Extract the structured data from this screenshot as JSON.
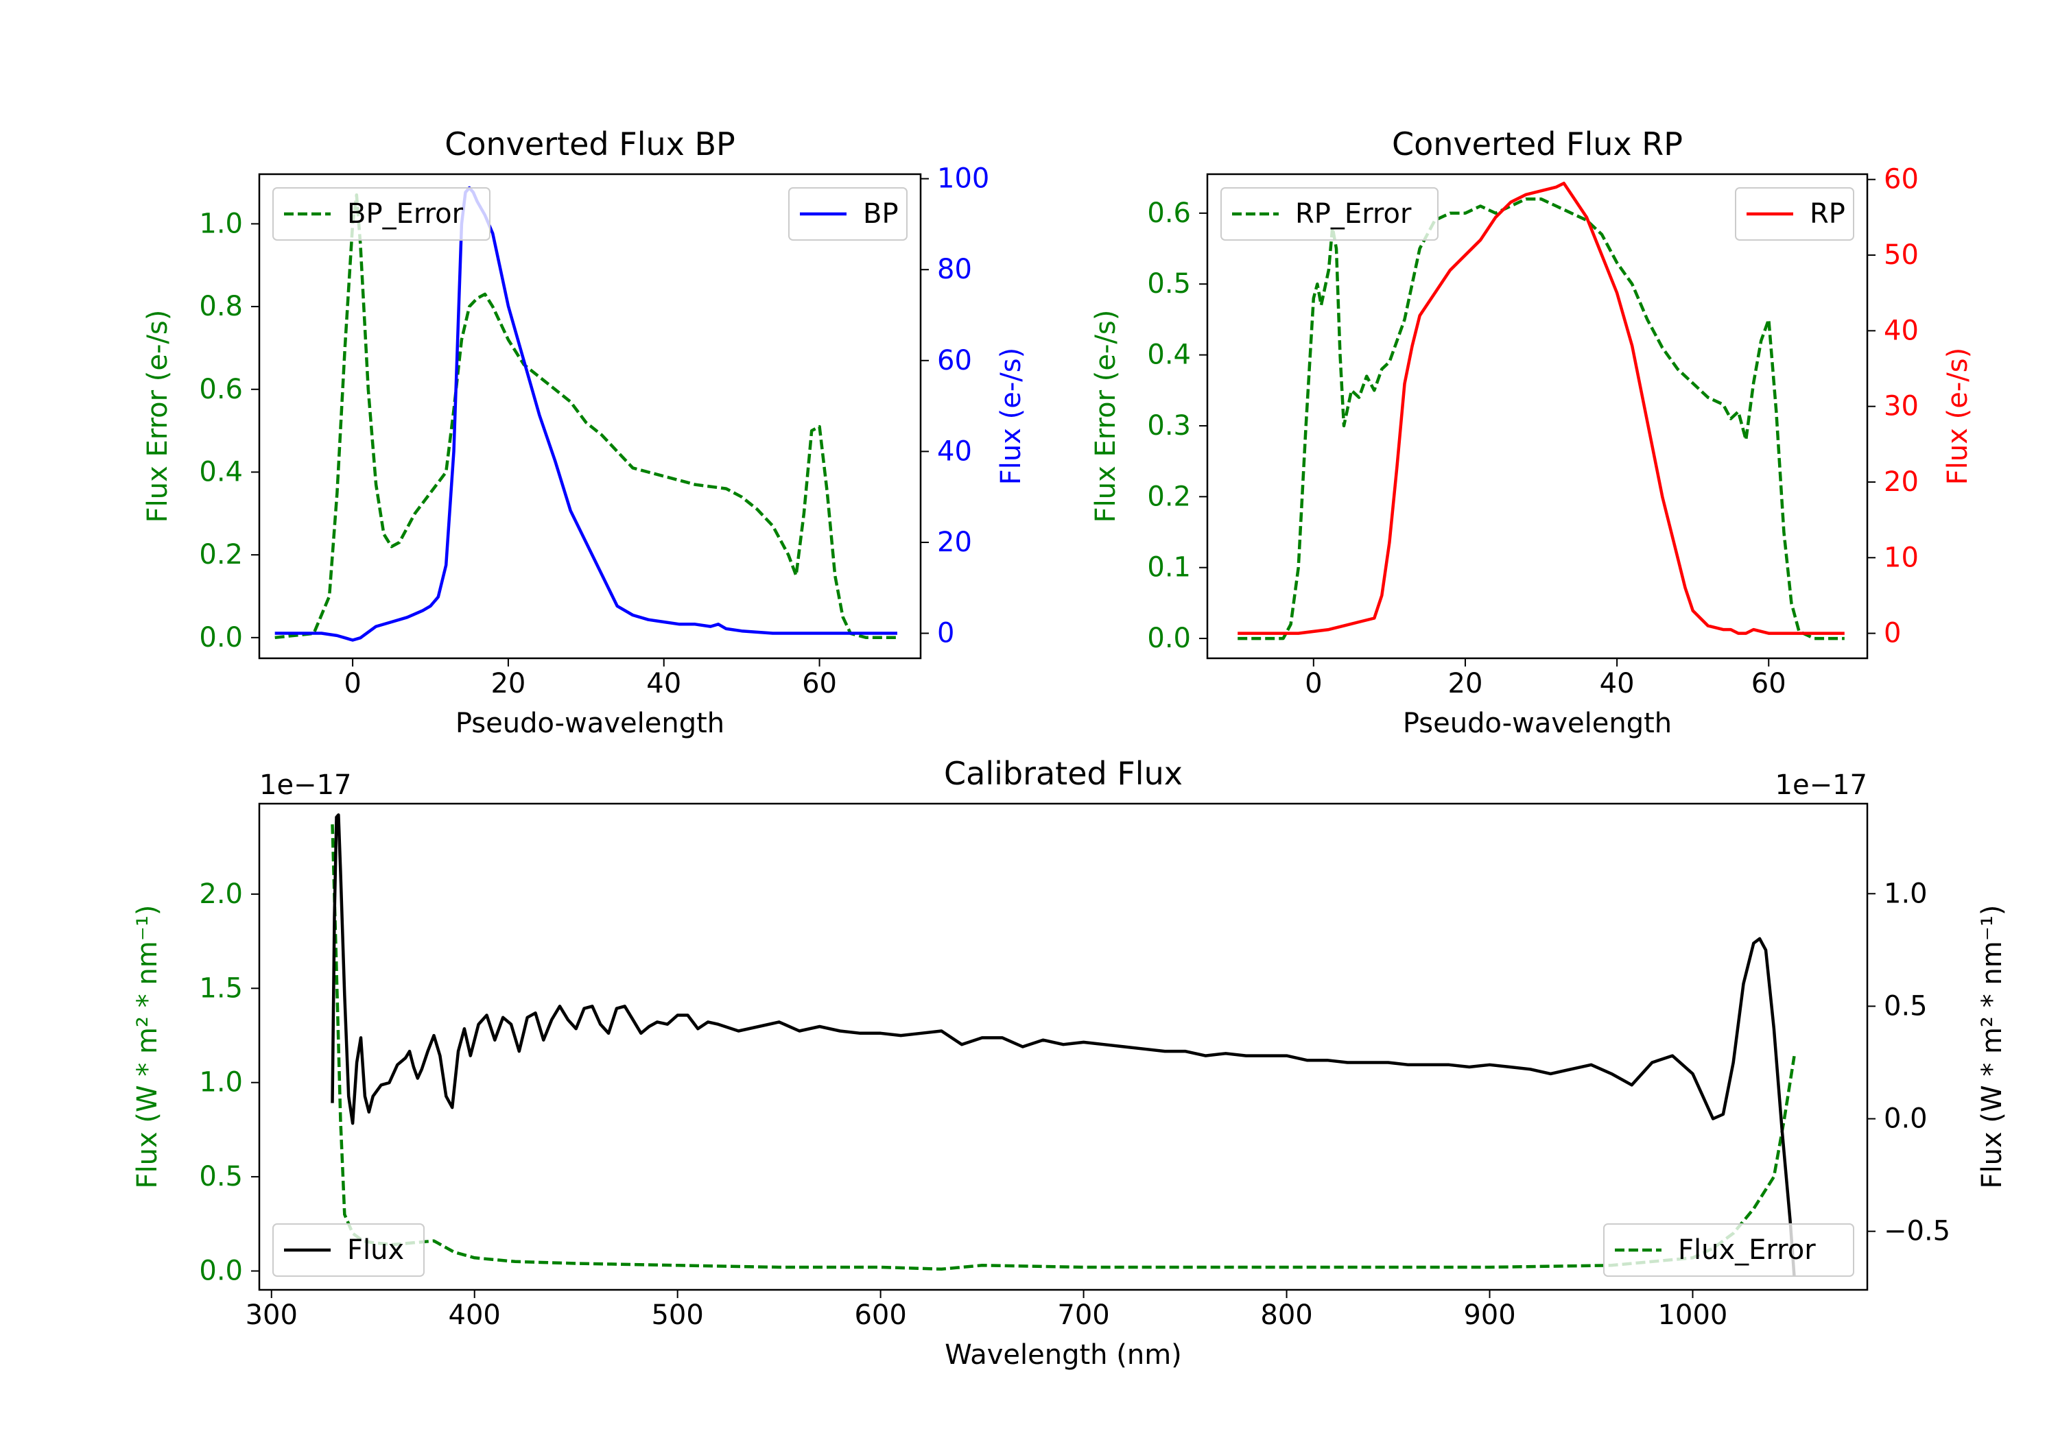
{
  "chart_data": [
    {
      "id": "bp",
      "type": "line",
      "title": "Converted Flux BP",
      "xlabel": "Pseudo-wavelength",
      "ylabel_left": "Flux Error (e-/s)",
      "ylabel_right": "Flux (e-/s)",
      "xlim": [
        -12,
        73
      ],
      "ylim_left": [
        -0.05,
        1.12
      ],
      "ylim_right": [
        -5.5,
        101
      ],
      "xticks": [
        {
          "v": 0,
          "label": "0"
        },
        {
          "v": 20,
          "label": "20"
        },
        {
          "v": 40,
          "label": "40"
        },
        {
          "v": 60,
          "label": "60"
        }
      ],
      "yticks_left": [
        {
          "v": 0.0,
          "label": "0.0"
        },
        {
          "v": 0.2,
          "label": "0.2"
        },
        {
          "v": 0.4,
          "label": "0.4"
        },
        {
          "v": 0.6,
          "label": "0.6"
        },
        {
          "v": 0.8,
          "label": "0.8"
        },
        {
          "v": 1.0,
          "label": "1.0"
        }
      ],
      "yticks_right": [
        {
          "v": 0,
          "label": "0"
        },
        {
          "v": 20,
          "label": "20"
        },
        {
          "v": 40,
          "label": "40"
        },
        {
          "v": 60,
          "label": "60"
        },
        {
          "v": 80,
          "label": "80"
        },
        {
          "v": 100,
          "label": "100"
        }
      ],
      "left_color": "#008000",
      "right_color": "#0000ff",
      "legend_left": {
        "label": "BP_Error",
        "position": "upper-left"
      },
      "legend_right": {
        "label": "BP",
        "position": "upper-right"
      },
      "series": [
        {
          "name": "BP_Error",
          "axis": "left",
          "color": "#008000",
          "dash": true,
          "x": [
            -10,
            -5,
            -3,
            -2,
            -1,
            0,
            0.5,
            1,
            2,
            3,
            4,
            5,
            6,
            8,
            10,
            12,
            13,
            14,
            15,
            16,
            17,
            18,
            20,
            22,
            24,
            26,
            28,
            30,
            32,
            34,
            36,
            38,
            40,
            42,
            44,
            46,
            48,
            50,
            52,
            54,
            56,
            57,
            58,
            59,
            60,
            61,
            62,
            63,
            64,
            66,
            70
          ],
          "y": [
            0,
            0.01,
            0.1,
            0.35,
            0.7,
            1.0,
            1.07,
            0.95,
            0.6,
            0.37,
            0.25,
            0.22,
            0.23,
            0.3,
            0.35,
            0.4,
            0.55,
            0.72,
            0.8,
            0.82,
            0.83,
            0.8,
            0.72,
            0.66,
            0.63,
            0.6,
            0.57,
            0.52,
            0.49,
            0.45,
            0.41,
            0.4,
            0.39,
            0.38,
            0.37,
            0.365,
            0.36,
            0.34,
            0.31,
            0.27,
            0.2,
            0.15,
            0.3,
            0.5,
            0.51,
            0.35,
            0.15,
            0.05,
            0.01,
            0,
            0
          ]
        },
        {
          "name": "BP",
          "axis": "right",
          "color": "#0000ff",
          "dash": false,
          "x": [
            -10,
            -4,
            -2,
            -1,
            0,
            1,
            3,
            5,
            7,
            9,
            10,
            11,
            12,
            13,
            13.5,
            14,
            14.5,
            15,
            15.5,
            16,
            17,
            18,
            19,
            20,
            22,
            24,
            26,
            28,
            30,
            32,
            34,
            36,
            38,
            40,
            42,
            44,
            46,
            47,
            48,
            50,
            54,
            58,
            62,
            66,
            70
          ],
          "y": [
            0,
            0,
            -0.5,
            -1,
            -1.5,
            -1,
            1.5,
            2.5,
            3.5,
            5,
            6,
            8,
            15,
            40,
            65,
            90,
            97,
            98,
            97,
            95,
            92,
            88,
            80,
            72,
            60,
            48,
            38,
            27,
            20,
            13,
            6,
            4,
            3,
            2.5,
            2,
            2,
            1.5,
            2,
            1,
            0.5,
            0,
            0,
            0,
            0,
            0
          ]
        }
      ]
    },
    {
      "id": "rp",
      "type": "line",
      "title": "Converted Flux RP",
      "xlabel": "Pseudo-wavelength",
      "ylabel_left": "Flux Error (e-/s)",
      "ylabel_right": "Flux (e-/s)",
      "xlim": [
        -14,
        73
      ],
      "ylim_left": [
        -0.028,
        0.655
      ],
      "ylim_right": [
        -3.3,
        60.7
      ],
      "xticks": [
        {
          "v": 0,
          "label": "0"
        },
        {
          "v": 20,
          "label": "20"
        },
        {
          "v": 40,
          "label": "40"
        },
        {
          "v": 60,
          "label": "60"
        }
      ],
      "yticks_left": [
        {
          "v": 0.0,
          "label": "0.0"
        },
        {
          "v": 0.1,
          "label": "0.1"
        },
        {
          "v": 0.2,
          "label": "0.2"
        },
        {
          "v": 0.3,
          "label": "0.3"
        },
        {
          "v": 0.4,
          "label": "0.4"
        },
        {
          "v": 0.5,
          "label": "0.5"
        },
        {
          "v": 0.6,
          "label": "0.6"
        }
      ],
      "yticks_right": [
        {
          "v": 0,
          "label": "0"
        },
        {
          "v": 10,
          "label": "10"
        },
        {
          "v": 20,
          "label": "20"
        },
        {
          "v": 30,
          "label": "30"
        },
        {
          "v": 40,
          "label": "40"
        },
        {
          "v": 50,
          "label": "50"
        },
        {
          "v": 60,
          "label": "60"
        }
      ],
      "left_color": "#008000",
      "right_color": "#ff0000",
      "legend_left": {
        "label": "RP_Error",
        "position": "upper-left"
      },
      "legend_right": {
        "label": "RP",
        "position": "upper-right"
      },
      "series": [
        {
          "name": "RP_Error",
          "axis": "left",
          "color": "#008000",
          "dash": true,
          "x": [
            -10,
            -4,
            -3,
            -2,
            -1,
            0,
            0.5,
            1,
            2,
            2.5,
            3,
            3.5,
            4,
            5,
            6,
            7,
            8,
            9,
            10,
            12,
            14,
            16,
            18,
            20,
            22,
            24,
            26,
            28,
            30,
            32,
            34,
            36,
            38,
            40,
            42,
            44,
            46,
            48,
            50,
            52,
            54,
            55,
            56,
            57,
            58,
            59,
            60,
            61,
            62,
            63,
            64,
            66,
            70
          ],
          "y": [
            0,
            0,
            0.02,
            0.1,
            0.3,
            0.48,
            0.5,
            0.47,
            0.52,
            0.58,
            0.55,
            0.4,
            0.3,
            0.35,
            0.34,
            0.37,
            0.35,
            0.38,
            0.39,
            0.45,
            0.55,
            0.59,
            0.6,
            0.6,
            0.61,
            0.6,
            0.61,
            0.62,
            0.62,
            0.61,
            0.6,
            0.59,
            0.57,
            0.53,
            0.5,
            0.45,
            0.41,
            0.38,
            0.36,
            0.34,
            0.33,
            0.31,
            0.32,
            0.28,
            0.36,
            0.42,
            0.45,
            0.32,
            0.15,
            0.05,
            0.01,
            0,
            0
          ]
        },
        {
          "name": "RP",
          "axis": "right",
          "color": "#ff0000",
          "dash": false,
          "x": [
            -10,
            -2,
            2,
            4,
            6,
            8,
            9,
            10,
            11,
            12,
            13,
            14,
            16,
            18,
            20,
            22,
            24,
            26,
            28,
            30,
            32,
            33,
            34,
            36,
            38,
            40,
            42,
            44,
            46,
            48,
            49,
            50,
            52,
            54,
            55,
            56,
            57,
            58,
            60,
            62,
            66,
            70
          ],
          "y": [
            0,
            0,
            0.5,
            1,
            1.5,
            2,
            5,
            12,
            22,
            33,
            38,
            42,
            45,
            48,
            50,
            52,
            55,
            57,
            58,
            58.5,
            59,
            59.5,
            58,
            55,
            50,
            45,
            38,
            28,
            18,
            10,
            6,
            3,
            1,
            0.5,
            0.5,
            0,
            0,
            0.5,
            0,
            0,
            0,
            0
          ]
        }
      ]
    },
    {
      "id": "cal",
      "type": "line",
      "title": "Calibrated Flux",
      "xlabel": "Wavelength (nm)",
      "ylabel_left": "Flux (W * m² * nm⁻¹)",
      "ylabel_right": "Flux (W * m² * nm⁻¹)",
      "offset_left": "1e−17",
      "offset_right": "1e−17",
      "xlim": [
        294,
        1086
      ],
      "ylim_left": [
        -0.1,
        2.48
      ],
      "ylim_right": [
        -0.76,
        1.4
      ],
      "xticks": [
        {
          "v": 300,
          "label": "300"
        },
        {
          "v": 400,
          "label": "400"
        },
        {
          "v": 500,
          "label": "500"
        },
        {
          "v": 600,
          "label": "600"
        },
        {
          "v": 700,
          "label": "700"
        },
        {
          "v": 800,
          "label": "800"
        },
        {
          "v": 900,
          "label": "900"
        },
        {
          "v": 1000,
          "label": "1000"
        }
      ],
      "yticks_left": [
        {
          "v": 0.0,
          "label": "0.0"
        },
        {
          "v": 0.5,
          "label": "0.5"
        },
        {
          "v": 1.0,
          "label": "1.0"
        },
        {
          "v": 1.5,
          "label": "1.5"
        },
        {
          "v": 2.0,
          "label": "2.0"
        }
      ],
      "yticks_right": [
        {
          "v": -0.5,
          "label": "−0.5"
        },
        {
          "v": 0.0,
          "label": "0.0"
        },
        {
          "v": 0.5,
          "label": "0.5"
        },
        {
          "v": 1.0,
          "label": "1.0"
        }
      ],
      "left_color": "#008000",
      "right_color": "#000000",
      "legend_left": {
        "label": "Flux",
        "position": "lower-left"
      },
      "legend_right": {
        "label": "Flux_Error",
        "position": "lower-right"
      },
      "series": [
        {
          "name": "Flux_Error",
          "axis": "left",
          "color": "#008000",
          "dash": true,
          "x": [
            330,
            332,
            334,
            336,
            340,
            345,
            350,
            360,
            370,
            380,
            390,
            400,
            420,
            450,
            500,
            550,
            600,
            630,
            650,
            700,
            800,
            900,
            960,
            1000,
            1010,
            1020,
            1030,
            1040,
            1045,
            1050
          ],
          "y": [
            2.37,
            1.6,
            0.8,
            0.3,
            0.2,
            0.16,
            0.15,
            0.14,
            0.15,
            0.16,
            0.1,
            0.07,
            0.05,
            0.04,
            0.03,
            0.02,
            0.02,
            0.01,
            0.03,
            0.02,
            0.02,
            0.02,
            0.03,
            0.07,
            0.12,
            0.2,
            0.33,
            0.5,
            0.8,
            1.14
          ]
        },
        {
          "name": "Flux",
          "axis": "right",
          "color": "#000000",
          "dash": false,
          "x": [
            330,
            331,
            332,
            333,
            334,
            336,
            338,
            340,
            342,
            344,
            346,
            348,
            350,
            354,
            358,
            362,
            366,
            368,
            370,
            372,
            374,
            377,
            380,
            383,
            386,
            389,
            392,
            395,
            398,
            402,
            406,
            410,
            414,
            418,
            422,
            426,
            430,
            434,
            438,
            442,
            446,
            450,
            454,
            458,
            462,
            466,
            470,
            474,
            478,
            482,
            486,
            490,
            495,
            500,
            505,
            510,
            515,
            520,
            530,
            540,
            550,
            560,
            570,
            580,
            590,
            600,
            610,
            620,
            630,
            640,
            650,
            660,
            670,
            680,
            690,
            700,
            710,
            720,
            730,
            740,
            750,
            760,
            770,
            780,
            790,
            800,
            810,
            820,
            830,
            840,
            850,
            860,
            870,
            880,
            890,
            900,
            910,
            920,
            930,
            940,
            950,
            960,
            970,
            980,
            990,
            1000,
            1005,
            1010,
            1015,
            1020,
            1025,
            1030,
            1033,
            1036,
            1040,
            1044,
            1048,
            1050
          ],
          "y": [
            0.07,
            0.9,
            1.34,
            1.35,
            1.1,
            0.55,
            0.1,
            -0.02,
            0.25,
            0.36,
            0.1,
            0.03,
            0.1,
            0.15,
            0.16,
            0.24,
            0.27,
            0.3,
            0.23,
            0.18,
            0.22,
            0.3,
            0.37,
            0.28,
            0.1,
            0.05,
            0.3,
            0.4,
            0.28,
            0.42,
            0.46,
            0.35,
            0.45,
            0.42,
            0.3,
            0.45,
            0.47,
            0.35,
            0.44,
            0.5,
            0.44,
            0.4,
            0.49,
            0.5,
            0.42,
            0.38,
            0.49,
            0.5,
            0.44,
            0.38,
            0.41,
            0.43,
            0.42,
            0.46,
            0.46,
            0.4,
            0.43,
            0.42,
            0.39,
            0.41,
            0.43,
            0.39,
            0.41,
            0.39,
            0.38,
            0.38,
            0.37,
            0.38,
            0.39,
            0.33,
            0.36,
            0.36,
            0.32,
            0.35,
            0.33,
            0.34,
            0.33,
            0.32,
            0.31,
            0.3,
            0.3,
            0.28,
            0.29,
            0.28,
            0.28,
            0.28,
            0.26,
            0.26,
            0.25,
            0.25,
            0.25,
            0.24,
            0.24,
            0.24,
            0.23,
            0.24,
            0.23,
            0.22,
            0.2,
            0.22,
            0.24,
            0.2,
            0.15,
            0.25,
            0.28,
            0.2,
            0.1,
            0.0,
            0.02,
            0.25,
            0.6,
            0.78,
            0.8,
            0.75,
            0.4,
            -0.05,
            -0.45,
            -0.7
          ]
        }
      ]
    }
  ]
}
